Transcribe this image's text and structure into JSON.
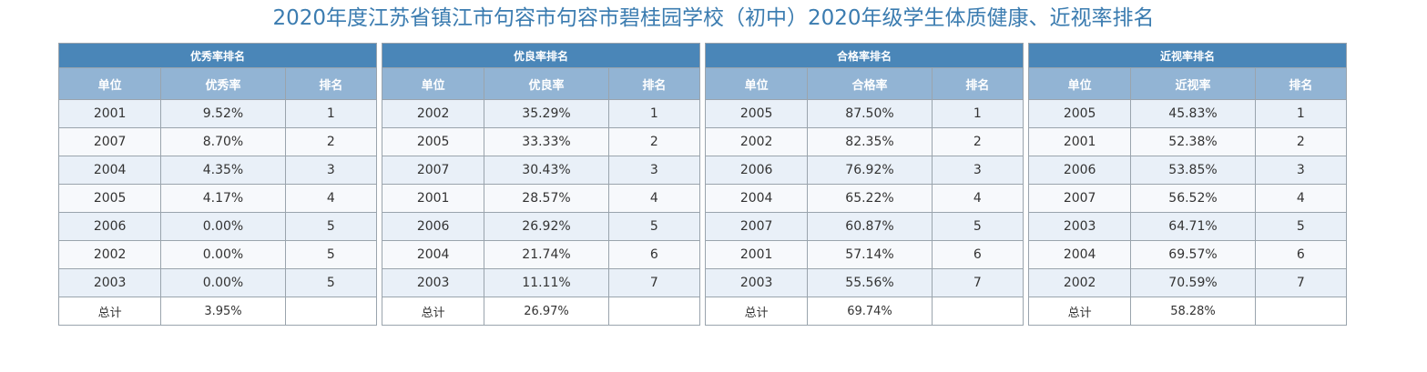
{
  "title": "2020年度江苏省镇江市句容市句容市碧桂园学校（初中）2020年级学生体质健康、近视率排名",
  "tables": [
    {
      "group": "优秀率排名",
      "headers": [
        "单位",
        "优秀率",
        "排名"
      ],
      "rows": [
        [
          "2001",
          "9.52%",
          "1"
        ],
        [
          "2007",
          "8.70%",
          "2"
        ],
        [
          "2004",
          "4.35%",
          "3"
        ],
        [
          "2005",
          "4.17%",
          "4"
        ],
        [
          "2006",
          "0.00%",
          "5"
        ],
        [
          "2002",
          "0.00%",
          "5"
        ],
        [
          "2003",
          "0.00%",
          "5"
        ]
      ],
      "total": [
        "总计",
        "3.95%",
        ""
      ]
    },
    {
      "group": "优良率排名",
      "headers": [
        "单位",
        "优良率",
        "排名"
      ],
      "rows": [
        [
          "2002",
          "35.29%",
          "1"
        ],
        [
          "2005",
          "33.33%",
          "2"
        ],
        [
          "2007",
          "30.43%",
          "3"
        ],
        [
          "2001",
          "28.57%",
          "4"
        ],
        [
          "2006",
          "26.92%",
          "5"
        ],
        [
          "2004",
          "21.74%",
          "6"
        ],
        [
          "2003",
          "11.11%",
          "7"
        ]
      ],
      "total": [
        "总计",
        "26.97%",
        ""
      ]
    },
    {
      "group": "合格率排名",
      "headers": [
        "单位",
        "合格率",
        "排名"
      ],
      "rows": [
        [
          "2005",
          "87.50%",
          "1"
        ],
        [
          "2002",
          "82.35%",
          "2"
        ],
        [
          "2006",
          "76.92%",
          "3"
        ],
        [
          "2004",
          "65.22%",
          "4"
        ],
        [
          "2007",
          "60.87%",
          "5"
        ],
        [
          "2001",
          "57.14%",
          "6"
        ],
        [
          "2003",
          "55.56%",
          "7"
        ]
      ],
      "total": [
        "总计",
        "69.74%",
        ""
      ]
    },
    {
      "group": "近视率排名",
      "headers": [
        "单位",
        "近视率",
        "排名"
      ],
      "rows": [
        [
          "2005",
          "45.83%",
          "1"
        ],
        [
          "2001",
          "52.38%",
          "2"
        ],
        [
          "2006",
          "53.85%",
          "3"
        ],
        [
          "2007",
          "56.52%",
          "4"
        ],
        [
          "2003",
          "64.71%",
          "5"
        ],
        [
          "2004",
          "69.57%",
          "6"
        ],
        [
          "2002",
          "70.59%",
          "7"
        ]
      ],
      "total": [
        "总计",
        "58.28%",
        ""
      ]
    }
  ]
}
